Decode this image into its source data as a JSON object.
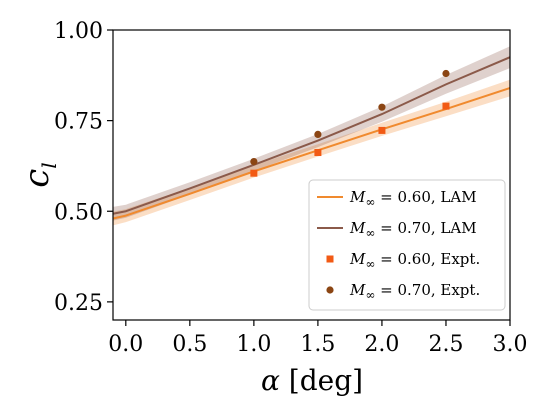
{
  "chart_data": {
    "type": "line",
    "xlabel": "α [deg]",
    "ylabel": "c_l",
    "xlim": [
      -0.1,
      3.0
    ],
    "ylim": [
      0.2,
      1.0
    ],
    "xticks": [
      "0.0",
      "0.5",
      "1.0",
      "1.5",
      "2.0",
      "2.5",
      "3.0"
    ],
    "yticks": [
      "0.25",
      "0.50",
      "0.75",
      "1.00"
    ],
    "legend_position": "lower-right",
    "series": [
      {
        "name": "M∞ = 0.60, LAM",
        "kind": "line",
        "color": "#f08a2e",
        "x": [
          -0.1,
          0.0,
          0.5,
          1.0,
          1.5,
          2.0,
          2.5,
          3.0
        ],
        "y": [
          0.48,
          0.488,
          0.548,
          0.61,
          0.668,
          0.726,
          0.782,
          0.84
        ],
        "band_lower": [
          0.461,
          0.47,
          0.531,
          0.593,
          0.651,
          0.708,
          0.762,
          0.817
        ],
        "band_upper": [
          0.499,
          0.506,
          0.565,
          0.627,
          0.685,
          0.744,
          0.802,
          0.863
        ]
      },
      {
        "name": "M∞ = 0.70, LAM",
        "kind": "line",
        "color": "#8b5a4a",
        "x": [
          -0.1,
          0.0,
          0.5,
          1.0,
          1.5,
          2.0,
          2.5,
          3.0
        ],
        "y": [
          0.493,
          0.5,
          0.563,
          0.628,
          0.695,
          0.768,
          0.85,
          0.925
        ],
        "band_lower": [
          0.474,
          0.482,
          0.546,
          0.611,
          0.677,
          0.747,
          0.824,
          0.895
        ],
        "band_upper": [
          0.512,
          0.518,
          0.58,
          0.645,
          0.713,
          0.789,
          0.876,
          0.955
        ]
      },
      {
        "name": "M∞ = 0.60, Expt.",
        "kind": "scatter",
        "marker": "square",
        "color": "#f25a14",
        "x": [
          1.0,
          1.5,
          2.0,
          2.5
        ],
        "y": [
          0.605,
          0.662,
          0.723,
          0.79
        ]
      },
      {
        "name": "M∞ = 0.70, Expt.",
        "kind": "scatter",
        "marker": "circle",
        "color": "#8b4513",
        "x": [
          1.0,
          1.5,
          2.0,
          2.5
        ],
        "y": [
          0.637,
          0.712,
          0.787,
          0.88
        ]
      }
    ],
    "legend": [
      {
        "main": "M",
        "sub": "∞",
        "rest": " = 0.60, LAM"
      },
      {
        "main": "M",
        "sub": "∞",
        "rest": " = 0.70, LAM"
      },
      {
        "main": "M",
        "sub": "∞",
        "rest": " = 0.60, Expt."
      },
      {
        "main": "M",
        "sub": "∞",
        "rest": " = 0.70, Expt."
      }
    ]
  }
}
